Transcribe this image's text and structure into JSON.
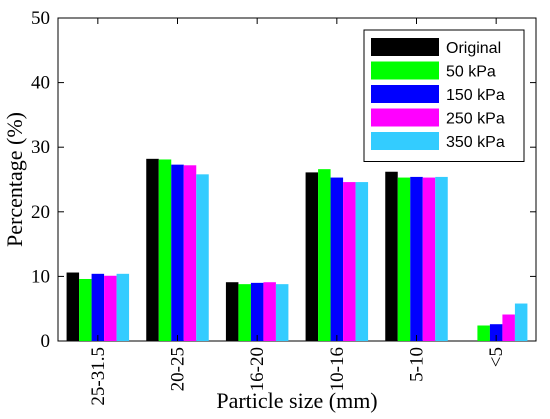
{
  "chart_data": {
    "type": "bar",
    "title": "",
    "xlabel": "Particle size (mm)",
    "ylabel": "Percentage (%)",
    "ylim": [
      0,
      50
    ],
    "yticks": [
      0,
      10,
      20,
      30,
      40,
      50
    ],
    "grid": false,
    "legend_position": "top-right",
    "categories": [
      "25-31.5",
      "20-25",
      "16-20",
      "10-16",
      "5-10",
      "<5"
    ],
    "series": [
      {
        "name": "Original",
        "color": "#000000",
        "values": [
          10.6,
          28.2,
          9.1,
          26.1,
          26.2,
          0
        ]
      },
      {
        "name": "50 kPa",
        "color": "#00ff00",
        "values": [
          9.6,
          28.1,
          8.8,
          26.6,
          25.3,
          2.4
        ]
      },
      {
        "name": "150 kPa",
        "color": "#0000ff",
        "values": [
          10.4,
          27.3,
          9.0,
          25.3,
          25.4,
          2.6
        ]
      },
      {
        "name": "250 kPa",
        "color": "#ff00ff",
        "values": [
          10.1,
          27.2,
          9.1,
          24.6,
          25.3,
          4.1
        ]
      },
      {
        "name": "350 kPa",
        "color": "#33ccff",
        "values": [
          10.4,
          25.8,
          8.8,
          24.6,
          25.4,
          5.8
        ]
      }
    ]
  }
}
